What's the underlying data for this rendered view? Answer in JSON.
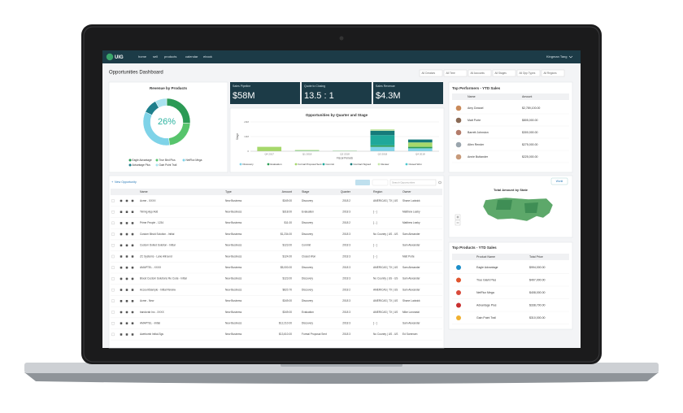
{
  "nav": {
    "logo": "UIG",
    "links": [
      "home",
      "sell",
      "products",
      "calendar",
      "ebook"
    ],
    "user": "Kingman Tang"
  },
  "page_title": "Opportunities Dashboard",
  "filters": [
    "All Creators",
    "All Time",
    "All Accounts",
    "All Stages",
    "All Opp Types",
    "All Regions"
  ],
  "revenue_by_products": {
    "type": "pie",
    "title": "Revenue by Products",
    "center_label": "26%",
    "categories": [
      "Eagle Advantage",
      "True Bird Plus",
      "NetFlux Mega",
      "Advantage Plus",
      "Gain Point Trail"
    ],
    "values": [
      26,
      22,
      34,
      10,
      8
    ],
    "colors": [
      "#2b9a55",
      "#57c46c",
      "#7fd3e8",
      "#1d7f8c",
      "#a9e3ef"
    ]
  },
  "kpis": [
    {
      "label": "Sales Pipeline",
      "value": "$58M"
    },
    {
      "label": "Quote to Closing",
      "value": "13.5 : 1"
    },
    {
      "label": "Sales Revenue",
      "value": "$4.3M"
    }
  ],
  "opportunities_chart": {
    "type": "bar",
    "title": "Opportunities by Quarter and Stage",
    "y_label": "Stage",
    "x_label": "Fiscal Periods",
    "categories": [
      "Q4 2017",
      "Q1 2018",
      "Q2 2018",
      "Q3 2018",
      "Q4 2018"
    ],
    "series": [
      {
        "name": "Discovery",
        "color": "#7fd3e8",
        "values": [
          0,
          0.3,
          0.2,
          3,
          2
        ]
      },
      {
        "name": "Evaluation",
        "color": "#2e9e57",
        "values": [
          0,
          0,
          0,
          1,
          1
        ]
      },
      {
        "name": "Formal Proposal Sent",
        "color": "#a6d86b",
        "values": [
          3,
          0.5,
          0,
          0,
          3
        ]
      },
      {
        "name": "Commit",
        "color": "#1fa89a",
        "values": [
          0,
          0,
          0,
          7,
          0
        ]
      },
      {
        "name": "Contract Signed",
        "color": "#167a7a",
        "values": [
          0,
          0,
          0,
          3,
          2
        ]
      },
      {
        "name": "Review",
        "color": "#c4e6a7",
        "values": [
          0,
          0,
          0.3,
          1,
          0
        ]
      },
      {
        "name": "Closed Won",
        "color": "#4cc7cf",
        "values": [
          0,
          0,
          0,
          0,
          0
        ]
      }
    ],
    "ylim": [
      0,
      20
    ],
    "yticks": [
      0,
      {
        "value": 10,
        "label": "10M"
      },
      {
        "value": 20,
        "label": "20M"
      }
    ],
    "grid": true
  },
  "top_performers": {
    "title": "Top Performers - YTD Sales",
    "columns": [
      "Name",
      "Amount"
    ],
    "rows": [
      [
        "Amy Dowsel",
        "$2,789,100.00"
      ],
      [
        "Matt Porte",
        "$805,000.00"
      ],
      [
        "Barrett Johnston",
        "$300,000.00"
      ],
      [
        "Allen Render",
        "$275,000.00"
      ],
      [
        "Annie Buttander",
        "$225,000.00"
      ]
    ]
  },
  "opportunities_table": {
    "button": "New Opportunity",
    "search": "Search Opportunities",
    "columns": [
      "Name",
      "Type",
      "Amount",
      "Stage",
      "Quarter",
      "Region",
      "Owner"
    ],
    "rows": [
      [
        "Acme - XXXX",
        "New Business",
        "$349.00",
        "Discovery",
        "2018 2",
        "AMERICAS | TX | US",
        "Shane Ludwick"
      ],
      [
        "Timing App Add",
        "New Business",
        "$318.00",
        "Evaluation",
        "2018 3",
        "[ - ]",
        "Matthew Leahy"
      ],
      [
        "Prime People - 1234",
        "New Business",
        "$11.00",
        "Discovery",
        "2018 2",
        "[ - ]",
        "Matthew Leahy"
      ],
      [
        "Custom Bkvid Solution - Initial",
        "New Business",
        "$1,234.00",
        "Discovery",
        "2018 3",
        "No Country | US - US",
        "Sam Alexander"
      ],
      [
        "Custom Dolled Solution - Initial",
        "New Business",
        "$123.00",
        "Commit",
        "2018 3",
        "[ - ]",
        "Sam Alexander"
      ],
      [
        "ZC Systems - Lane Allround",
        "New Business",
        "$124.00",
        "Closed Won",
        "2018 3",
        "[ - ]",
        "Matt Porte"
      ],
      [
        "AMAPTEL - XXXX",
        "New Business",
        "$5,000.00",
        "Discovery",
        "2018 3",
        "AMERICAS | TX | US",
        "Sam Alexander"
      ],
      [
        "Blood Custom Solutions Re Code - Initial",
        "New Business",
        "$123.00",
        "Discovery",
        "2018 3",
        "No Country | US - US",
        "Sam Alexander"
      ],
      [
        "AccountSample - Initial Review",
        "New Business",
        "$620.70",
        "Discovery",
        "2018 2",
        "AMERICAS | TX | US",
        "Sam Alexander"
      ],
      [
        "Acme - New",
        "New Business",
        "$349.00",
        "Discovery",
        "2018 3",
        "AMERICAS | TX | US",
        "Shane Ludwick"
      ],
      [
        "bandcrab Inc - XXXX",
        "New Business",
        "$349.00",
        "Evaluation",
        "2018 3",
        "AMERICAS | TX | US",
        "Mike Lonowski"
      ],
      [
        "AMAPTEL - Initial",
        "New Business",
        "$12,210.00",
        "Discovery",
        "2018 3",
        "[ - ]",
        "Sam Alexander"
      ],
      [
        "Awebomb Initial-Sgs",
        "New Business",
        "$13,610.00",
        "Formal Proposal Sent",
        "2018 3",
        "No Country | US - US",
        "Ed Sorensen"
      ]
    ]
  },
  "map": {
    "title": "Total Amount by State",
    "button": "World"
  },
  "top_products": {
    "title": "Top Products - YTD Sales",
    "columns": [
      "Product Name",
      "Total Price"
    ],
    "rows": [
      [
        "Eagle Advantage",
        "$994,000.00"
      ],
      [
        "True Giant Plus",
        "$497,000.00"
      ],
      [
        "NetFlux Mega",
        "$408,000.00"
      ],
      [
        "Advantage Plus",
        "$338,700.00"
      ],
      [
        "Gain Point Trail",
        "$310,000.00"
      ]
    ]
  }
}
